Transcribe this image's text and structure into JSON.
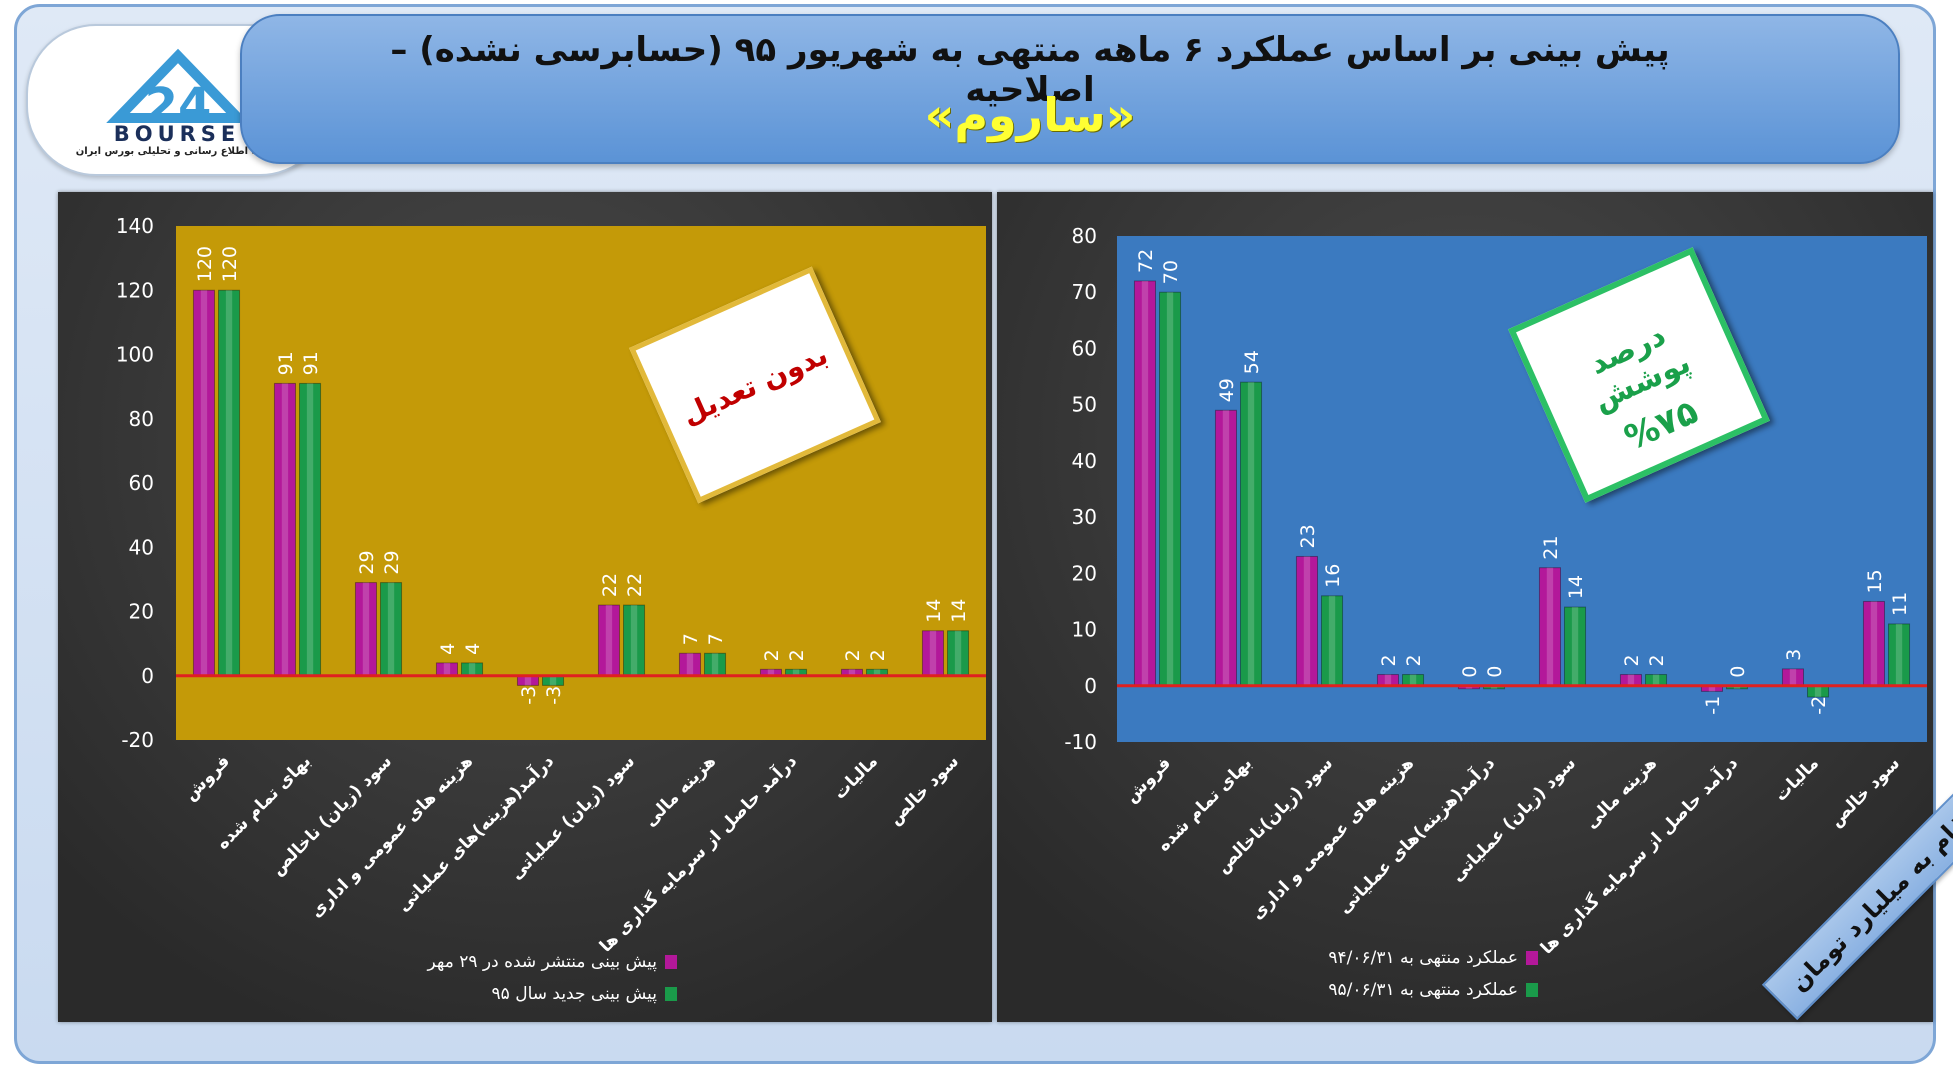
{
  "header": {
    "title": "پیش بینی بر اساس عملکرد ۶ ماهه منتهی به شهریور ۹۵ (حسابرسی نشده) –اصلاحیه",
    "subtitle": "«ساروم»"
  },
  "logo": {
    "text": "BOURSE",
    "numeral": "24",
    "tagline": "پایگاه اطلاع رسانی و تحلیلی بورس ایران"
  },
  "unit_note": "ارقام به میلیارد تومان",
  "callouts": {
    "left": "بدون تعدیل",
    "right_line1": "درصد پوشش",
    "right_line2": "%۷۵"
  },
  "colors": {
    "series_a": "#b3189a",
    "series_b": "#1a9a4a",
    "zero_line": "#e02020",
    "left_plot_bg": "#c49a08",
    "right_plot_bg": "#3b7ac0"
  },
  "chart_data": [
    {
      "type": "bar",
      "categories": [
        "فروش",
        "بهای تمام شده",
        "سود (زیان) ناخالص",
        "هزینه های عمومی و اداری",
        "درآمد(هزینه)های عملیاتی",
        "سود (زیان) عملیاتی",
        "هزینه مالی",
        "درآمد حاصل از سرمایه گذاری ها",
        "مالیات",
        "سود خالص"
      ],
      "series": [
        {
          "name": "پیش بینی منتشر شده در ۲۹ مهر",
          "values": [
            120,
            91,
            29,
            4,
            -3,
            22,
            7,
            2,
            2,
            14
          ]
        },
        {
          "name": "پیش بینی جدید سال ۹۵",
          "values": [
            120,
            91,
            29,
            4,
            -3,
            22,
            7,
            2,
            2,
            14
          ]
        }
      ],
      "ylim": [
        -20,
        140
      ],
      "yticks": [
        140,
        120,
        100,
        80,
        60,
        40,
        20,
        0,
        -20
      ],
      "grid": false,
      "legend": "bottom"
    },
    {
      "type": "bar",
      "categories": [
        "فروش",
        "بهای تمام شده",
        "سود (زیان)ناخالص",
        "هزینه های عمومی و اداری",
        "درآمد(هزینه)های عملیاتی",
        "سود (زیان) عملیاتی",
        "هزینه مالی",
        "درآمد حاصل از سرمایه گذاری ها",
        "مالیات",
        "سود خالص"
      ],
      "series": [
        {
          "name": "عملکرد منتهی به ۹۴/۰۶/۳۱",
          "values": [
            72,
            49,
            23,
            2,
            0,
            21,
            2,
            -1,
            3,
            15
          ]
        },
        {
          "name": "عملکرد منتهی به ۹۵/۰۶/۳۱",
          "values": [
            70,
            54,
            16,
            2,
            0,
            14,
            2,
            0,
            -2,
            11
          ]
        }
      ],
      "ylim": [
        -10,
        80
      ],
      "yticks": [
        80,
        70,
        60,
        50,
        40,
        30,
        20,
        10,
        0,
        -10
      ],
      "grid": false,
      "legend": "bottom"
    }
  ]
}
